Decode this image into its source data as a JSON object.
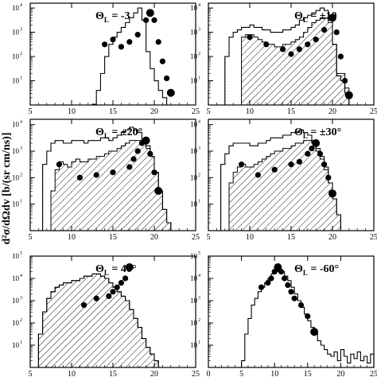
{
  "figure": {
    "ylabel": "d²σ/dΩdv [b/(sr cm/ns)]"
  },
  "chart_data": [
    {
      "type": "line",
      "panel_label": "Θ",
      "panel_label_sub": "L",
      "panel_label_value": " = -3",
      "xlim": [
        5,
        25
      ],
      "x_ticks": [
        "5",
        "10",
        "15",
        "20",
        "25"
      ],
      "y_ticks": [
        "10",
        "10",
        "10",
        "10"
      ],
      "y_tick_exponents": [
        "1",
        "2",
        "3",
        "4"
      ],
      "ylim_log10": [
        0,
        4.2
      ],
      "series": [
        {
          "kind": "histogram-outline",
          "x": [
            12.5,
            13,
            13.5,
            14,
            14.5,
            15,
            15.5,
            16,
            16.5,
            17,
            17.5,
            18,
            18.5,
            19,
            19.5,
            20,
            20.5,
            21,
            21.5,
            22
          ],
          "y": [
            0.03,
            0.6,
            1.3,
            2.0,
            2.5,
            2.8,
            3.0,
            3.2,
            3.4,
            3.6,
            3.8,
            4.0,
            3.5,
            2.2,
            1.5,
            1.0,
            0.6,
            0.3,
            0.0,
            0.0
          ]
        },
        {
          "kind": "points",
          "x": [
            14,
            15,
            16,
            17,
            18,
            19,
            19.5,
            20,
            20.5,
            21,
            21.5,
            22
          ],
          "y": [
            2.5,
            2.7,
            2.4,
            2.6,
            2.9,
            3.5,
            3.8,
            3.5,
            2.6,
            1.8,
            1.1,
            0.5
          ]
        }
      ]
    },
    {
      "type": "line",
      "panel_label": "Θ",
      "panel_label_sub": "L",
      "panel_label_value": " = ±10",
      "xlim": [
        5,
        25
      ],
      "x_ticks": [
        "5",
        "10",
        "15",
        "20",
        "25"
      ],
      "y_ticks": [
        "10",
        "10",
        "10",
        "10"
      ],
      "y_tick_exponents": [
        "1",
        "2",
        "3",
        "4"
      ],
      "ylim_log10": [
        0,
        4.2
      ],
      "series": [
        {
          "kind": "histogram-outline",
          "x": [
            7,
            7.5,
            8,
            8.5,
            9,
            9.5,
            10,
            10.5,
            11,
            11.5,
            12,
            12.5,
            13,
            13.5,
            14,
            14.5,
            15,
            15.5,
            16,
            16.5,
            17,
            17.5,
            18,
            18.5,
            19,
            19.5,
            20,
            20.5,
            21,
            21.5
          ],
          "y": [
            2.0,
            2.8,
            3.0,
            3.1,
            3.2,
            3.2,
            3.3,
            3.2,
            3.2,
            3.1,
            3.1,
            3.0,
            3.0,
            3.0,
            3.1,
            3.1,
            3.2,
            3.3,
            3.5,
            3.6,
            3.7,
            3.8,
            3.9,
            4.0,
            3.9,
            3.5,
            2.5,
            1.2,
            1.0,
            0.5
          ]
        },
        {
          "kind": "hatched",
          "x": [
            9,
            9.5,
            10,
            10.5,
            11,
            11.5,
            12,
            12.5,
            13,
            13.5,
            14,
            14.5,
            15,
            15.5,
            16,
            16.5,
            17,
            17.5,
            18,
            18.5,
            19,
            19.5,
            20,
            20.5,
            21,
            21.5
          ],
          "y": [
            2.8,
            2.9,
            2.9,
            2.8,
            2.7,
            2.6,
            2.5,
            2.5,
            2.4,
            2.4,
            2.5,
            2.5,
            2.6,
            2.7,
            2.8,
            3.0,
            3.2,
            3.4,
            3.5,
            3.6,
            3.6,
            3.4,
            2.5,
            1.3,
            1.3,
            0.7
          ]
        },
        {
          "kind": "points",
          "x": [
            10,
            12,
            14,
            15,
            16,
            17,
            18,
            19,
            20,
            20.5,
            21,
            21.5,
            22
          ],
          "y": [
            2.8,
            2.5,
            2.3,
            2.1,
            2.3,
            2.5,
            2.7,
            3.1,
            3.6,
            3.0,
            2.0,
            1.0,
            0.4
          ]
        }
      ]
    },
    {
      "type": "line",
      "panel_label": "Θ",
      "panel_label_sub": "L",
      "panel_label_value": " = ±20°",
      "xlim": [
        5,
        25
      ],
      "x_ticks": [
        "5",
        "10",
        "15",
        "20",
        "25"
      ],
      "y_ticks": [
        "10",
        "10",
        "10",
        "10"
      ],
      "y_tick_exponents": [
        "1",
        "2",
        "3",
        "4"
      ],
      "ylim_log10": [
        0,
        4.2
      ],
      "series": [
        {
          "kind": "histogram-outline",
          "x": [
            6.5,
            7,
            7.5,
            8,
            8.5,
            9,
            9.5,
            10,
            10.5,
            11,
            11.5,
            12,
            12.5,
            13,
            13.5,
            14,
            14.5,
            15,
            15.5,
            16,
            16.5,
            17,
            17.5,
            18,
            18.5,
            19,
            19.5,
            20,
            20.5,
            21,
            21.5,
            22
          ],
          "y": [
            2.5,
            3.0,
            3.3,
            3.4,
            3.4,
            3.3,
            3.3,
            3.4,
            3.4,
            3.4,
            3.3,
            3.4,
            3.4,
            3.4,
            3.5,
            3.5,
            3.4,
            3.5,
            3.6,
            3.7,
            3.8,
            3.9,
            3.8,
            3.7,
            3.4,
            3.2,
            2.8,
            2.2,
            1.5,
            0.8,
            0.3,
            0.0
          ]
        },
        {
          "kind": "hatched",
          "x": [
            7.5,
            8,
            8.5,
            9,
            9.5,
            10,
            10.5,
            11,
            11.5,
            12,
            12.5,
            13,
            13.5,
            14,
            14.5,
            15,
            15.5,
            16,
            16.5,
            17,
            17.5,
            18,
            18.5,
            19,
            19.5,
            20,
            20.5,
            21,
            21.5,
            22
          ],
          "y": [
            1.5,
            2.3,
            2.6,
            2.5,
            2.4,
            2.6,
            2.7,
            2.6,
            2.6,
            2.7,
            2.7,
            2.8,
            2.8,
            2.9,
            3.0,
            3.0,
            3.1,
            3.2,
            3.3,
            3.4,
            3.4,
            3.4,
            3.3,
            3.1,
            2.8,
            2.2,
            1.5,
            0.8,
            0.3,
            0.0
          ]
        },
        {
          "kind": "points",
          "x": [
            8.5,
            11,
            13,
            15,
            17,
            17.5,
            18,
            18.5,
            19,
            19.5,
            20,
            20.5
          ],
          "y": [
            2.5,
            2.0,
            2.1,
            2.2,
            2.4,
            2.7,
            3.0,
            3.3,
            3.4,
            2.9,
            2.2,
            1.5
          ]
        }
      ]
    },
    {
      "type": "line",
      "panel_label": "Θ",
      "panel_label_sub": "L",
      "panel_label_value": " = ±30°",
      "xlim": [
        5,
        25
      ],
      "x_ticks": [
        "5",
        "10",
        "15",
        "20",
        "25"
      ],
      "y_ticks": [
        "10",
        "10",
        "10",
        "10"
      ],
      "y_tick_exponents": [
        "1",
        "2",
        "3",
        "4"
      ],
      "ylim_log10": [
        0,
        4.2
      ],
      "series": [
        {
          "kind": "histogram-outline",
          "x": [
            6.5,
            7,
            7.5,
            8,
            8.5,
            9,
            9.5,
            10,
            10.5,
            11,
            11.5,
            12,
            12.5,
            13,
            13.5,
            14,
            14.5,
            15,
            15.5,
            16,
            16.5,
            17,
            17.5,
            18,
            18.5,
            19,
            19.5,
            20,
            20.5,
            21
          ],
          "y": [
            2.5,
            2.9,
            3.2,
            3.3,
            3.3,
            3.3,
            3.3,
            3.2,
            3.2,
            3.3,
            3.3,
            3.4,
            3.5,
            3.5,
            3.5,
            3.6,
            3.6,
            3.7,
            3.7,
            3.8,
            3.7,
            3.6,
            3.4,
            3.1,
            2.8,
            2.4,
            1.8,
            1.2,
            0.6,
            0.0
          ]
        },
        {
          "kind": "hatched",
          "x": [
            7.5,
            8,
            8.5,
            9,
            9.5,
            10,
            10.5,
            11,
            11.5,
            12,
            12.5,
            13,
            13.5,
            14,
            14.5,
            15,
            15.5,
            16,
            16.5,
            17,
            17.5,
            18,
            18.5,
            19,
            19.5,
            20,
            20.5,
            21
          ],
          "y": [
            1.8,
            2.2,
            2.4,
            2.5,
            2.4,
            2.4,
            2.5,
            2.6,
            2.7,
            2.8,
            2.9,
            3.0,
            3.0,
            3.1,
            3.1,
            3.2,
            3.3,
            3.3,
            3.4,
            3.4,
            3.3,
            3.0,
            2.7,
            2.3,
            1.8,
            1.2,
            0.6,
            0.0
          ]
        },
        {
          "kind": "points",
          "x": [
            9,
            11,
            13,
            15,
            16,
            17,
            17.5,
            18,
            18.5,
            19,
            19.5,
            20
          ],
          "y": [
            2.5,
            2.1,
            2.3,
            2.5,
            2.6,
            2.9,
            3.1,
            3.3,
            2.9,
            2.5,
            2.0,
            1.4
          ]
        }
      ]
    },
    {
      "type": "line",
      "panel_label": "Θ",
      "panel_label_sub": "L",
      "panel_label_value": " = 40°",
      "xlim": [
        5,
        25
      ],
      "x_ticks": [
        "5",
        "10",
        "15",
        "20",
        "25"
      ],
      "y_ticks": [
        "10",
        "10",
        "10",
        "10",
        "10"
      ],
      "y_tick_exponents": [
        "1",
        "2",
        "3",
        "4",
        "5"
      ],
      "ylim_log10": [
        0,
        5
      ],
      "series": [
        {
          "kind": "histogram-outline",
          "x": [
            6,
            6.5,
            7,
            7.5,
            8,
            8.5,
            9,
            9.5,
            10,
            10.5,
            11,
            11.5,
            12,
            12.5,
            13,
            13.5,
            14,
            14.5,
            15,
            15.5,
            16,
            16.5,
            17,
            17.5,
            18,
            18.5,
            19,
            19.5,
            20,
            20.5
          ],
          "y": [
            1.5,
            2.5,
            3.1,
            3.4,
            3.6,
            3.7,
            3.8,
            3.8,
            3.9,
            3.9,
            4.0,
            4.1,
            4.1,
            4.2,
            4.2,
            4.1,
            4.0,
            3.8,
            3.6,
            3.4,
            3.2,
            3.0,
            2.6,
            2.2,
            1.8,
            1.3,
            0.9,
            0.6,
            0.3,
            0.0
          ]
        },
        {
          "kind": "hatched",
          "x": [
            6,
            6.5,
            7,
            7.5,
            8,
            8.5,
            9,
            9.5,
            10,
            10.5,
            11,
            11.5,
            12,
            12.5,
            13,
            13.5,
            14,
            14.5,
            15,
            15.5,
            16,
            16.5,
            17,
            17.5,
            18,
            18.5,
            19,
            19.5,
            20,
            20.5
          ],
          "y": [
            1.5,
            2.5,
            3.1,
            3.4,
            3.6,
            3.7,
            3.8,
            3.8,
            3.9,
            3.9,
            4.0,
            4.1,
            4.1,
            4.2,
            4.2,
            4.1,
            4.0,
            3.8,
            3.6,
            3.4,
            3.2,
            3.0,
            2.6,
            2.2,
            1.8,
            1.3,
            0.9,
            0.6,
            0.3,
            0.0
          ]
        },
        {
          "kind": "points",
          "x": [
            11.5,
            13,
            14.5,
            15,
            15.5,
            16,
            16.5,
            17
          ],
          "y": [
            2.8,
            3.1,
            3.2,
            3.4,
            3.6,
            3.8,
            4.0,
            4.5
          ]
        }
      ]
    },
    {
      "type": "line",
      "panel_label": "Θ",
      "panel_label_sub": "L",
      "panel_label_value": " = -60°",
      "xlim": [
        0,
        25
      ],
      "x_ticks": [
        "0",
        "5",
        "10",
        "15",
        "20",
        "25"
      ],
      "y_ticks": [
        "10",
        "10",
        "10",
        "10",
        "10"
      ],
      "y_tick_exponents": [
        "1",
        "2",
        "3",
        "4",
        "5"
      ],
      "ylim_log10": [
        0,
        5
      ],
      "series": [
        {
          "kind": "histogram-outline",
          "x": [
            5,
            5.5,
            6,
            6.5,
            7,
            7.5,
            8,
            8.5,
            9,
            9.5,
            10,
            10.5,
            11,
            11.5,
            12,
            12.5,
            13,
            13.5,
            14,
            14.5,
            15,
            15.5,
            16,
            16.5,
            17,
            17.5,
            18,
            18.5,
            19,
            19.5,
            20,
            20.5,
            21,
            21.5,
            22,
            22.5,
            23,
            23.5,
            24,
            24.5
          ],
          "y": [
            0.3,
            1.5,
            2.2,
            2.8,
            3.1,
            3.4,
            3.6,
            3.8,
            4.0,
            4.2,
            4.3,
            4.4,
            4.3,
            4.1,
            3.9,
            3.6,
            3.3,
            3.0,
            2.7,
            2.4,
            2.1,
            1.8,
            1.5,
            1.2,
            1.0,
            0.8,
            0.6,
            0.5,
            0.7,
            0.3,
            0.8,
            0.5,
            0.2,
            0.6,
            0.4,
            0.7,
            0.3,
            0.5,
            0.2,
            0.6
          ]
        },
        {
          "kind": "points",
          "x": [
            8,
            9,
            9.5,
            10,
            10.5,
            11,
            11.5,
            12,
            12.5,
            13,
            14,
            15,
            16
          ],
          "y": [
            3.6,
            3.8,
            4.0,
            4.3,
            4.5,
            4.3,
            4.0,
            3.7,
            3.4,
            3.1,
            2.8,
            2.3,
            1.6
          ]
        }
      ]
    }
  ]
}
